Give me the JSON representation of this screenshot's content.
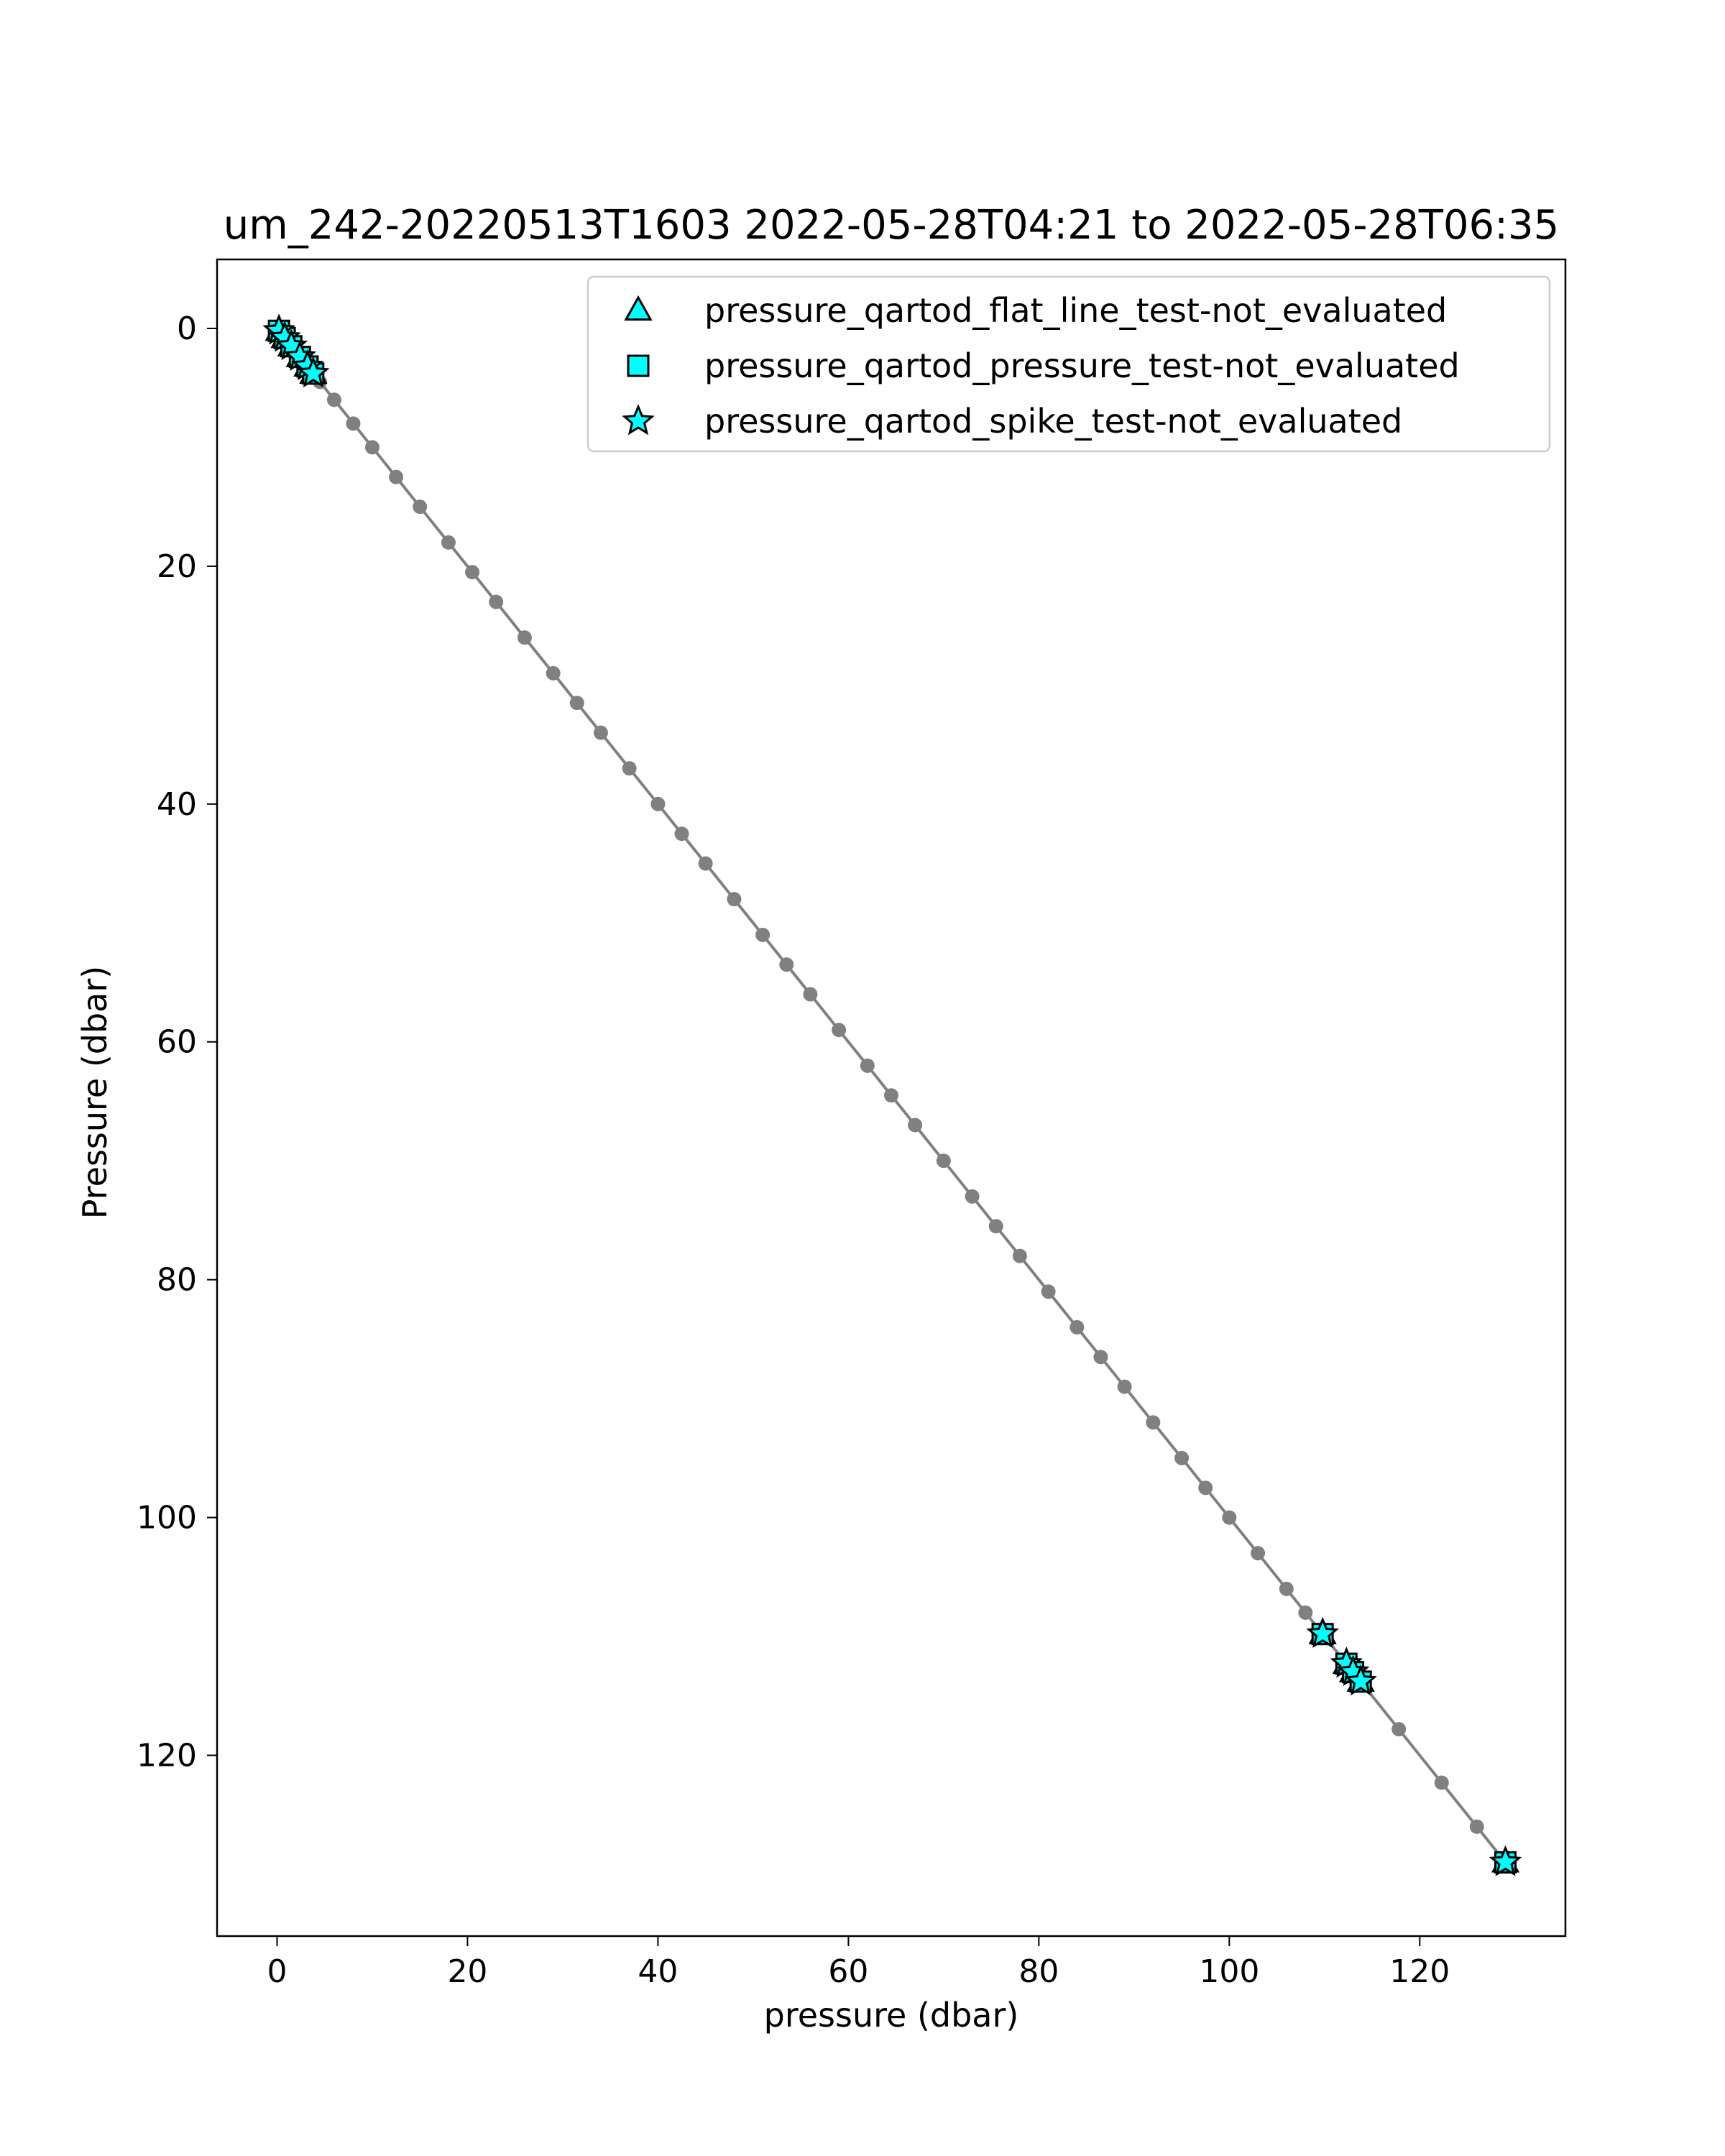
{
  "chart_data": {
    "type": "scatter",
    "title": "um_242-20220513T1603 2022-05-28T04:21 to 2022-05-28T06:35",
    "xlabel": "pressure (dbar)",
    "ylabel": "Pressure (dbar)",
    "xlim": [
      -6.3,
      135.3
    ],
    "ylim": [
      135.2,
      -5.8
    ],
    "y_inverted": true,
    "x_ticks": [
      0,
      20,
      40,
      60,
      80,
      100,
      120
    ],
    "y_ticks": [
      0,
      20,
      40,
      60,
      80,
      100,
      120
    ],
    "grid": false,
    "legend_position": "upper-right",
    "profile": {
      "color": "#808080",
      "x": [
        0.2,
        0.6,
        1.0,
        1.5,
        2.0,
        2.5,
        3.0,
        3.5,
        4.5,
        6.0,
        8.0,
        10.0,
        12.5,
        15.0,
        18.0,
        20.5,
        23.0,
        26.0,
        29.0,
        31.5,
        34.0,
        37.0,
        40.0,
        42.5,
        45.0,
        48.0,
        51.0,
        53.5,
        56.0,
        59.0,
        62.0,
        64.5,
        67.0,
        70.0,
        73.0,
        75.5,
        78.0,
        81.0,
        84.0,
        86.5,
        89.0,
        92.0,
        95.0,
        97.5,
        100.0,
        103.0,
        106.0,
        108.0,
        109.8,
        112.3,
        113.0,
        113.8,
        117.8,
        122.3,
        126.0,
        129.0
      ],
      "y": [
        0.2,
        0.6,
        1.0,
        1.5,
        2.0,
        2.5,
        3.0,
        3.5,
        4.5,
        6.0,
        8.0,
        10.0,
        12.5,
        15.0,
        18.0,
        20.5,
        23.0,
        26.0,
        29.0,
        31.5,
        34.0,
        37.0,
        40.0,
        42.5,
        45.0,
        48.0,
        51.0,
        53.5,
        56.0,
        59.0,
        62.0,
        64.5,
        67.0,
        70.0,
        73.0,
        75.5,
        78.0,
        81.0,
        84.0,
        86.5,
        89.0,
        92.0,
        95.0,
        97.5,
        100.0,
        103.0,
        106.0,
        108.0,
        109.8,
        112.3,
        113.0,
        113.8,
        117.8,
        122.3,
        126.0,
        129.0
      ]
    },
    "flagged": {
      "x": [
        0.2,
        0.8,
        1.5,
        2.4,
        3.2,
        3.8,
        109.8,
        112.3,
        113.0,
        113.8,
        129.0
      ],
      "y": [
        0.2,
        0.8,
        1.5,
        2.4,
        3.2,
        3.8,
        109.8,
        112.3,
        113.0,
        113.8,
        129.0
      ]
    },
    "series": [
      {
        "name": "pressure_qartod_flat_line_test-not_evaluated",
        "marker": "triangle",
        "color": "#00ffff"
      },
      {
        "name": "pressure_qartod_pressure_test-not_evaluated",
        "marker": "square",
        "color": "#00ffff"
      },
      {
        "name": "pressure_qartod_spike_test-not_evaluated",
        "marker": "star",
        "color": "#00ffff"
      }
    ]
  }
}
